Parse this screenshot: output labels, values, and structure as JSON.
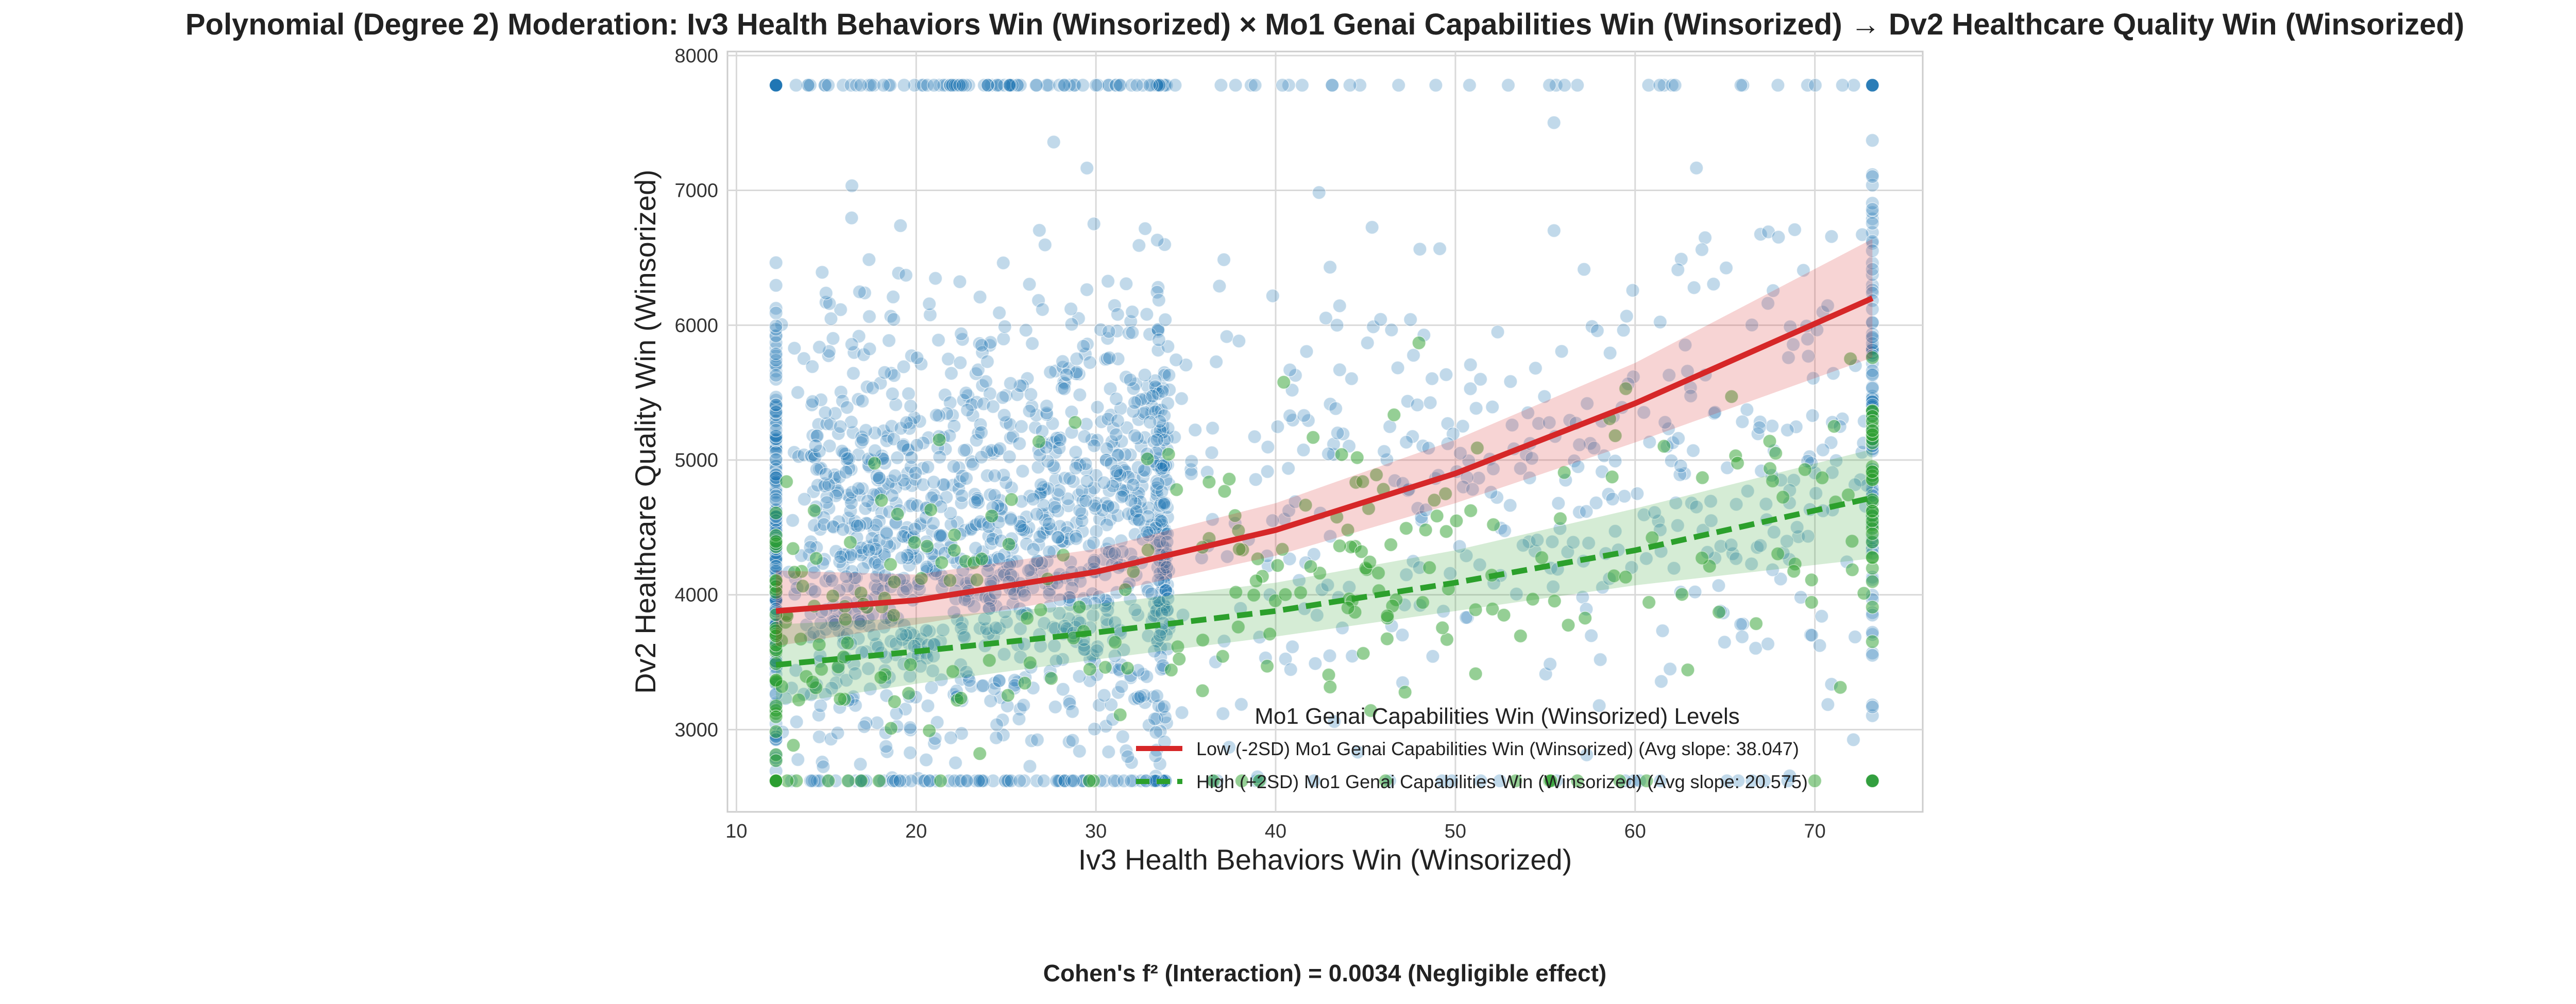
{
  "title": "Polynomial (Degree 2) Moderation: Iv3 Health Behaviors Win (Winsorized) × Mo1 Genai Capabilities Win (Winsorized) → Dv2 Healthcare Quality Win (Winsorized)",
  "footer": "Cohen's f² (Interaction) = 0.0034 (Negligible effect)",
  "chart_data": {
    "type": "scatter",
    "xlabel": "Iv3 Health Behaviors Win (Winsorized)",
    "ylabel": "Dv2 Healthcare Quality Win (Winsorized)",
    "xlim": [
      9.5,
      76
    ],
    "ylim": [
      2390,
      8030
    ],
    "xticks": [
      10,
      20,
      30,
      40,
      50,
      60,
      70
    ],
    "yticks": [
      3000,
      4000,
      5000,
      6000,
      7000,
      8000
    ],
    "grid": true,
    "x_range_observed": [
      12.2,
      73.2
    ],
    "y_range_observed": [
      2620,
      7780
    ],
    "point_colors": {
      "blue": "#1f77b4",
      "green": "#2ca02c"
    },
    "legend": {
      "title": "Mo1 Genai Capabilities Win (Winsorized) Levels",
      "placement": "lower-right",
      "entries": [
        "Low (-2SD) Mo1 Genai Capabilities Win (Winsorized) (Avg slope: 38.047)",
        "High (+2SD) Mo1 Genai Capabilities Win (Winsorized) (Avg slope: 20.575)"
      ]
    },
    "series": [
      {
        "name": "Low (-2SD) Mo1 Genai Capabilities Win (Winsorized) (Avg slope: 38.047)",
        "color": "#d62728",
        "line_style": "solid",
        "x": [
          12.2,
          20,
          30,
          40,
          50,
          60,
          73.2
        ],
        "y": [
          3880,
          3960,
          4170,
          4480,
          4900,
          5420,
          6200
        ],
        "ci_lower": [
          3620,
          3780,
          4000,
          4290,
          4680,
          5130,
          5760
        ],
        "ci_upper": [
          4180,
          4150,
          4340,
          4680,
          5150,
          5720,
          6640
        ]
      },
      {
        "name": "High (+2SD) Mo1 Genai Capabilities Win (Winsorized) (Avg slope: 20.575)",
        "color": "#2ca02c",
        "line_style": "dashed",
        "x": [
          12.2,
          20,
          30,
          40,
          50,
          60,
          73.2
        ],
        "y": [
          3480,
          3580,
          3720,
          3880,
          4090,
          4330,
          4720
        ],
        "ci_lower": [
          3180,
          3340,
          3520,
          3690,
          3880,
          4070,
          4270
        ],
        "ci_upper": [
          3780,
          3830,
          3930,
          4090,
          4330,
          4640,
          5080
        ]
      }
    ]
  }
}
